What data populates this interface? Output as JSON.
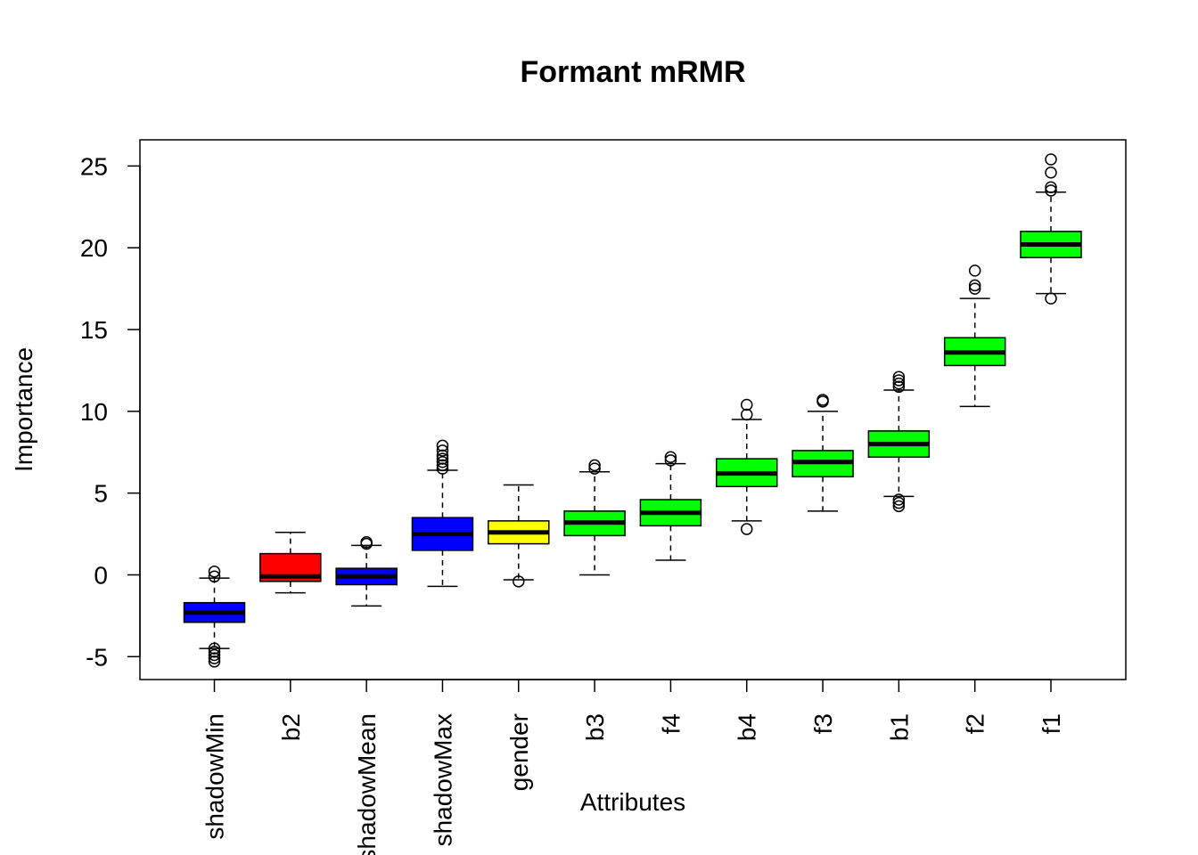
{
  "chart_data": {
    "type": "boxplot",
    "title": "Formant mRMR",
    "xlabel": "Attributes",
    "ylabel": "Importance",
    "ylim": [
      -6.4,
      26.6
    ],
    "yticks": [
      -5,
      0,
      5,
      10,
      15,
      20,
      25
    ],
    "grid": false,
    "categories": [
      "shadowMin",
      "b2",
      "shadowMean",
      "shadowMax",
      "gender",
      "b3",
      "f4",
      "b4",
      "f3",
      "b1",
      "f2",
      "f1"
    ],
    "colors": [
      "#0000ff",
      "#ff0000",
      "#0000ff",
      "#0000ff",
      "#ffff00",
      "#00ff00",
      "#00ff00",
      "#00ff00",
      "#00ff00",
      "#00ff00",
      "#00ff00",
      "#00ff00"
    ],
    "boxes": [
      {
        "name": "shadowMin",
        "whisker_low": -4.5,
        "q1": -2.9,
        "median": -2.3,
        "q3": -1.7,
        "whisker_high": -0.2,
        "outliers": [
          0.2,
          -0.1,
          -4.5,
          -4.7,
          -4.9,
          -5.1,
          -5.3
        ]
      },
      {
        "name": "b2",
        "whisker_low": -1.1,
        "q1": -0.4,
        "median": -0.1,
        "q3": 1.3,
        "whisker_high": 2.6,
        "outliers": []
      },
      {
        "name": "shadowMean",
        "whisker_low": -1.9,
        "q1": -0.6,
        "median": -0.1,
        "q3": 0.4,
        "whisker_high": 1.8,
        "outliers": [
          2.0,
          1.9
        ]
      },
      {
        "name": "shadowMax",
        "whisker_low": -0.7,
        "q1": 1.5,
        "median": 2.5,
        "q3": 3.5,
        "whisker_high": 6.4,
        "outliers": [
          6.5,
          6.7,
          6.9,
          7.1,
          7.3,
          7.6,
          7.9
        ]
      },
      {
        "name": "gender",
        "whisker_low": -0.3,
        "q1": 1.9,
        "median": 2.6,
        "q3": 3.3,
        "whisker_high": 5.5,
        "outliers": [
          -0.4
        ]
      },
      {
        "name": "b3",
        "whisker_low": 0.0,
        "q1": 2.4,
        "median": 3.2,
        "q3": 3.9,
        "whisker_high": 6.3,
        "outliers": [
          6.5,
          6.7
        ]
      },
      {
        "name": "f4",
        "whisker_low": 0.9,
        "q1": 3.0,
        "median": 3.8,
        "q3": 4.6,
        "whisker_high": 6.8,
        "outliers": [
          7.0,
          7.2
        ]
      },
      {
        "name": "b4",
        "whisker_low": 3.3,
        "q1": 5.4,
        "median": 6.2,
        "q3": 7.1,
        "whisker_high": 9.5,
        "outliers": [
          9.8,
          10.4,
          2.8
        ]
      },
      {
        "name": "f3",
        "whisker_low": 3.9,
        "q1": 6.0,
        "median": 6.9,
        "q3": 7.6,
        "whisker_high": 10.0,
        "outliers": [
          10.6,
          10.7
        ]
      },
      {
        "name": "b1",
        "whisker_low": 4.8,
        "q1": 7.2,
        "median": 8.0,
        "q3": 8.8,
        "whisker_high": 11.3,
        "outliers": [
          11.5,
          11.7,
          11.9,
          12.1,
          4.6,
          4.4,
          4.2
        ]
      },
      {
        "name": "f2",
        "whisker_low": 10.3,
        "q1": 12.8,
        "median": 13.6,
        "q3": 14.5,
        "whisker_high": 16.9,
        "outliers": [
          17.5,
          17.7,
          18.6
        ]
      },
      {
        "name": "f1",
        "whisker_low": 17.2,
        "q1": 19.4,
        "median": 20.2,
        "q3": 21.0,
        "whisker_high": 23.4,
        "outliers": [
          23.5,
          23.7,
          24.6,
          25.4,
          16.9
        ]
      }
    ]
  }
}
